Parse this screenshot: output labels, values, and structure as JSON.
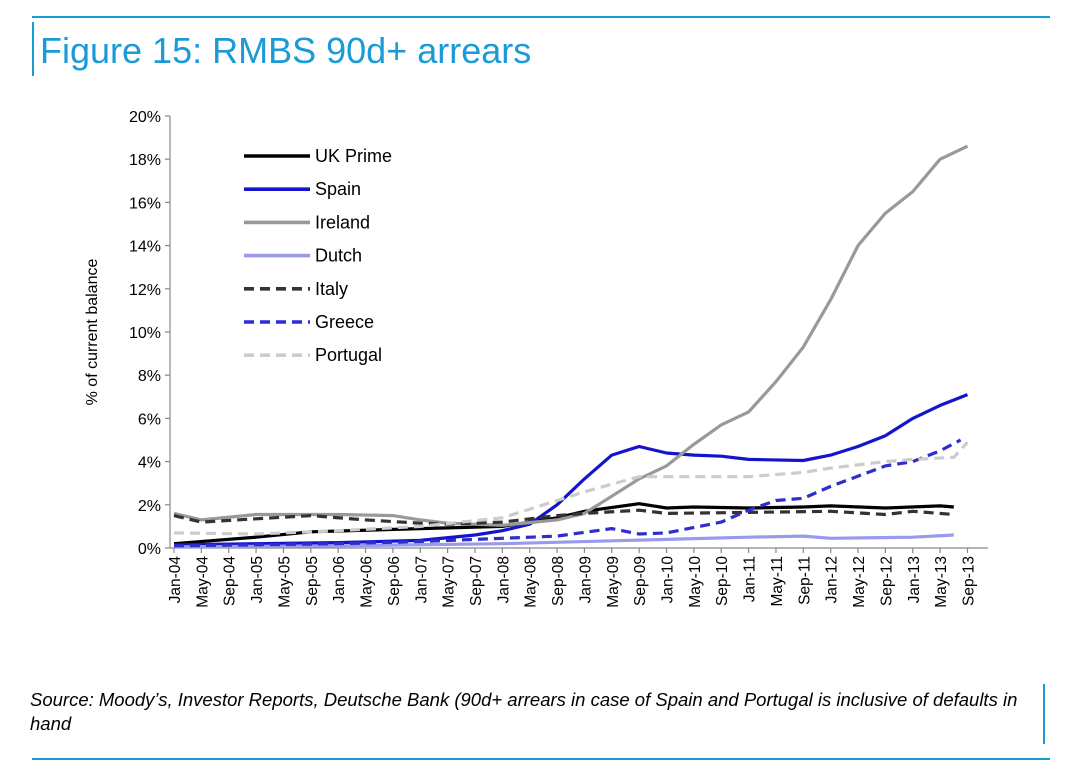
{
  "header": {
    "title": "Figure 15: RMBS 90d+ arrears"
  },
  "footer": {
    "source": "Source: Moody’s, Investor Reports, Deutsche Bank (90d+ arrears in case of Spain and Portugal is inclusive of defaults in hand"
  },
  "chart_data": {
    "type": "line",
    "title": "Figure 15: RMBS 90d+ arrears",
    "ylabel": "% of current balance",
    "xlabel": "",
    "ylim": [
      0,
      20
    ],
    "yticks": [
      "0%",
      "2%",
      "4%",
      "6%",
      "8%",
      "10%",
      "12%",
      "14%",
      "16%",
      "18%",
      "20%"
    ],
    "x_tick_labels": [
      "Jan-04",
      "May-04",
      "Sep-04",
      "Jan-05",
      "May-05",
      "Sep-05",
      "Jan-06",
      "May-06",
      "Sep-06",
      "Jan-07",
      "May-07",
      "Sep-07",
      "Jan-08",
      "May-08",
      "Sep-08",
      "Jan-09",
      "May-09",
      "Sep-09",
      "Jan-10",
      "May-10",
      "Sep-10",
      "Jan-11",
      "May-11",
      "Sep-11",
      "Jan-12",
      "May-12",
      "Sep-12",
      "Jan-13",
      "May-13",
      "Sep-13"
    ],
    "legend_position": "top-left",
    "grid": false,
    "series": [
      {
        "name": "UK Prime",
        "color": "#000000",
        "dash": "solid",
        "points": [
          [
            "Jan-04",
            0.2
          ],
          [
            "Jan-05",
            0.5
          ],
          [
            "Sep-05",
            0.75
          ],
          [
            "Jan-07",
            0.9
          ],
          [
            "Jan-08",
            1.0
          ],
          [
            "Sep-08",
            1.4
          ],
          [
            "Jan-09",
            1.7
          ],
          [
            "Sep-09",
            2.05
          ],
          [
            "Jan-10",
            1.85
          ],
          [
            "May-10",
            1.9
          ],
          [
            "Jan-11",
            1.85
          ],
          [
            "Sep-11",
            1.9
          ],
          [
            "Jan-12",
            1.95
          ],
          [
            "Sep-12",
            1.85
          ],
          [
            "May-13",
            1.95
          ],
          [
            "Jul-13",
            1.9
          ]
        ]
      },
      {
        "name": "Spain",
        "color": "#1414cc",
        "dash": "solid",
        "points": [
          [
            "Jan-04",
            0.15
          ],
          [
            "Jan-06",
            0.25
          ],
          [
            "Jan-07",
            0.35
          ],
          [
            "Sep-07",
            0.6
          ],
          [
            "Jan-08",
            0.8
          ],
          [
            "May-08",
            1.1
          ],
          [
            "Sep-08",
            2.0
          ],
          [
            "Jan-09",
            3.2
          ],
          [
            "May-09",
            4.3
          ],
          [
            "Sep-09",
            4.7
          ],
          [
            "Jan-10",
            4.4
          ],
          [
            "May-10",
            4.3
          ],
          [
            "Sep-10",
            4.25
          ],
          [
            "Jan-11",
            4.1
          ],
          [
            "Sep-11",
            4.05
          ],
          [
            "Jan-12",
            4.3
          ],
          [
            "May-12",
            4.7
          ],
          [
            "Sep-12",
            5.2
          ],
          [
            "Jan-13",
            6.0
          ],
          [
            "May-13",
            6.6
          ],
          [
            "Sep-13",
            7.1
          ]
        ]
      },
      {
        "name": "Ireland",
        "color": "#999999",
        "dash": "solid",
        "points": [
          [
            "Jan-04",
            1.6
          ],
          [
            "May-04",
            1.3
          ],
          [
            "Jan-05",
            1.55
          ],
          [
            "Jan-06",
            1.55
          ],
          [
            "Sep-06",
            1.5
          ],
          [
            "Jan-07",
            1.3
          ],
          [
            "May-07",
            1.15
          ],
          [
            "Jan-08",
            1.05
          ],
          [
            "Sep-08",
            1.3
          ],
          [
            "Jan-09",
            1.6
          ],
          [
            "May-09",
            2.4
          ],
          [
            "Sep-09",
            3.2
          ],
          [
            "Jan-10",
            3.8
          ],
          [
            "May-10",
            4.8
          ],
          [
            "Sep-10",
            5.7
          ],
          [
            "Jan-11",
            6.3
          ],
          [
            "May-11",
            7.7
          ],
          [
            "Sep-11",
            9.3
          ],
          [
            "Jan-12",
            11.5
          ],
          [
            "May-12",
            14.0
          ],
          [
            "Sep-12",
            15.5
          ],
          [
            "Jan-13",
            16.5
          ],
          [
            "May-13",
            18.0
          ],
          [
            "Sep-13",
            18.6
          ]
        ]
      },
      {
        "name": "Dutch",
        "color": "#9999ee",
        "dash": "solid",
        "points": [
          [
            "Jan-04",
            0.05
          ],
          [
            "Jan-06",
            0.1
          ],
          [
            "Jan-08",
            0.2
          ],
          [
            "Jan-10",
            0.4
          ],
          [
            "Jan-11",
            0.5
          ],
          [
            "Sep-11",
            0.55
          ],
          [
            "Jan-12",
            0.45
          ],
          [
            "Jan-13",
            0.5
          ],
          [
            "Jul-13",
            0.6
          ]
        ]
      },
      {
        "name": "Italy",
        "color": "#333333",
        "dash": "dashed",
        "points": [
          [
            "Jan-04",
            1.5
          ],
          [
            "May-04",
            1.2
          ],
          [
            "Jan-05",
            1.35
          ],
          [
            "Sep-05",
            1.5
          ],
          [
            "May-06",
            1.3
          ],
          [
            "Jan-07",
            1.15
          ],
          [
            "May-07",
            1.1
          ],
          [
            "Jan-08",
            1.2
          ],
          [
            "Sep-08",
            1.5
          ],
          [
            "Jan-09",
            1.6
          ],
          [
            "Sep-09",
            1.75
          ],
          [
            "Jan-10",
            1.6
          ],
          [
            "Jan-11",
            1.65
          ],
          [
            "Jan-12",
            1.7
          ],
          [
            "Sep-12",
            1.55
          ],
          [
            "Jan-13",
            1.7
          ],
          [
            "Jul-13",
            1.55
          ]
        ]
      },
      {
        "name": "Greece",
        "color": "#2d2dd0",
        "dash": "dashed",
        "points": [
          [
            "Jan-04",
            0.1
          ],
          [
            "Jan-06",
            0.2
          ],
          [
            "Jan-07",
            0.3
          ],
          [
            "Jan-08",
            0.45
          ],
          [
            "Sep-08",
            0.55
          ],
          [
            "May-09",
            0.9
          ],
          [
            "Sep-09",
            0.65
          ],
          [
            "Jan-10",
            0.7
          ],
          [
            "Sep-10",
            1.2
          ],
          [
            "Jan-11",
            1.75
          ],
          [
            "May-11",
            2.2
          ],
          [
            "Sep-11",
            2.3
          ],
          [
            "Jan-12",
            2.85
          ],
          [
            "Sep-12",
            3.8
          ],
          [
            "Jan-13",
            4.0
          ],
          [
            "May-13",
            4.5
          ],
          [
            "Aug-13",
            5.0
          ]
        ]
      },
      {
        "name": "Portugal",
        "color": "#cccccc",
        "dash": "dashed",
        "points": [
          [
            "Jan-04",
            0.7
          ],
          [
            "Jan-05",
            0.65
          ],
          [
            "Jan-06",
            0.8
          ],
          [
            "Jan-07",
            1.0
          ],
          [
            "Jan-08",
            1.4
          ],
          [
            "Sep-08",
            2.2
          ],
          [
            "Jan-09",
            2.6
          ],
          [
            "Sep-09",
            3.3
          ],
          [
            "Jan-10",
            3.3
          ],
          [
            "Jan-11",
            3.3
          ],
          [
            "Sep-11",
            3.5
          ],
          [
            "Jan-12",
            3.7
          ],
          [
            "Sep-12",
            4.0
          ],
          [
            "Jan-13",
            4.1
          ],
          [
            "Jul-13",
            4.2
          ],
          [
            "Sep-13",
            4.9
          ]
        ]
      }
    ]
  }
}
